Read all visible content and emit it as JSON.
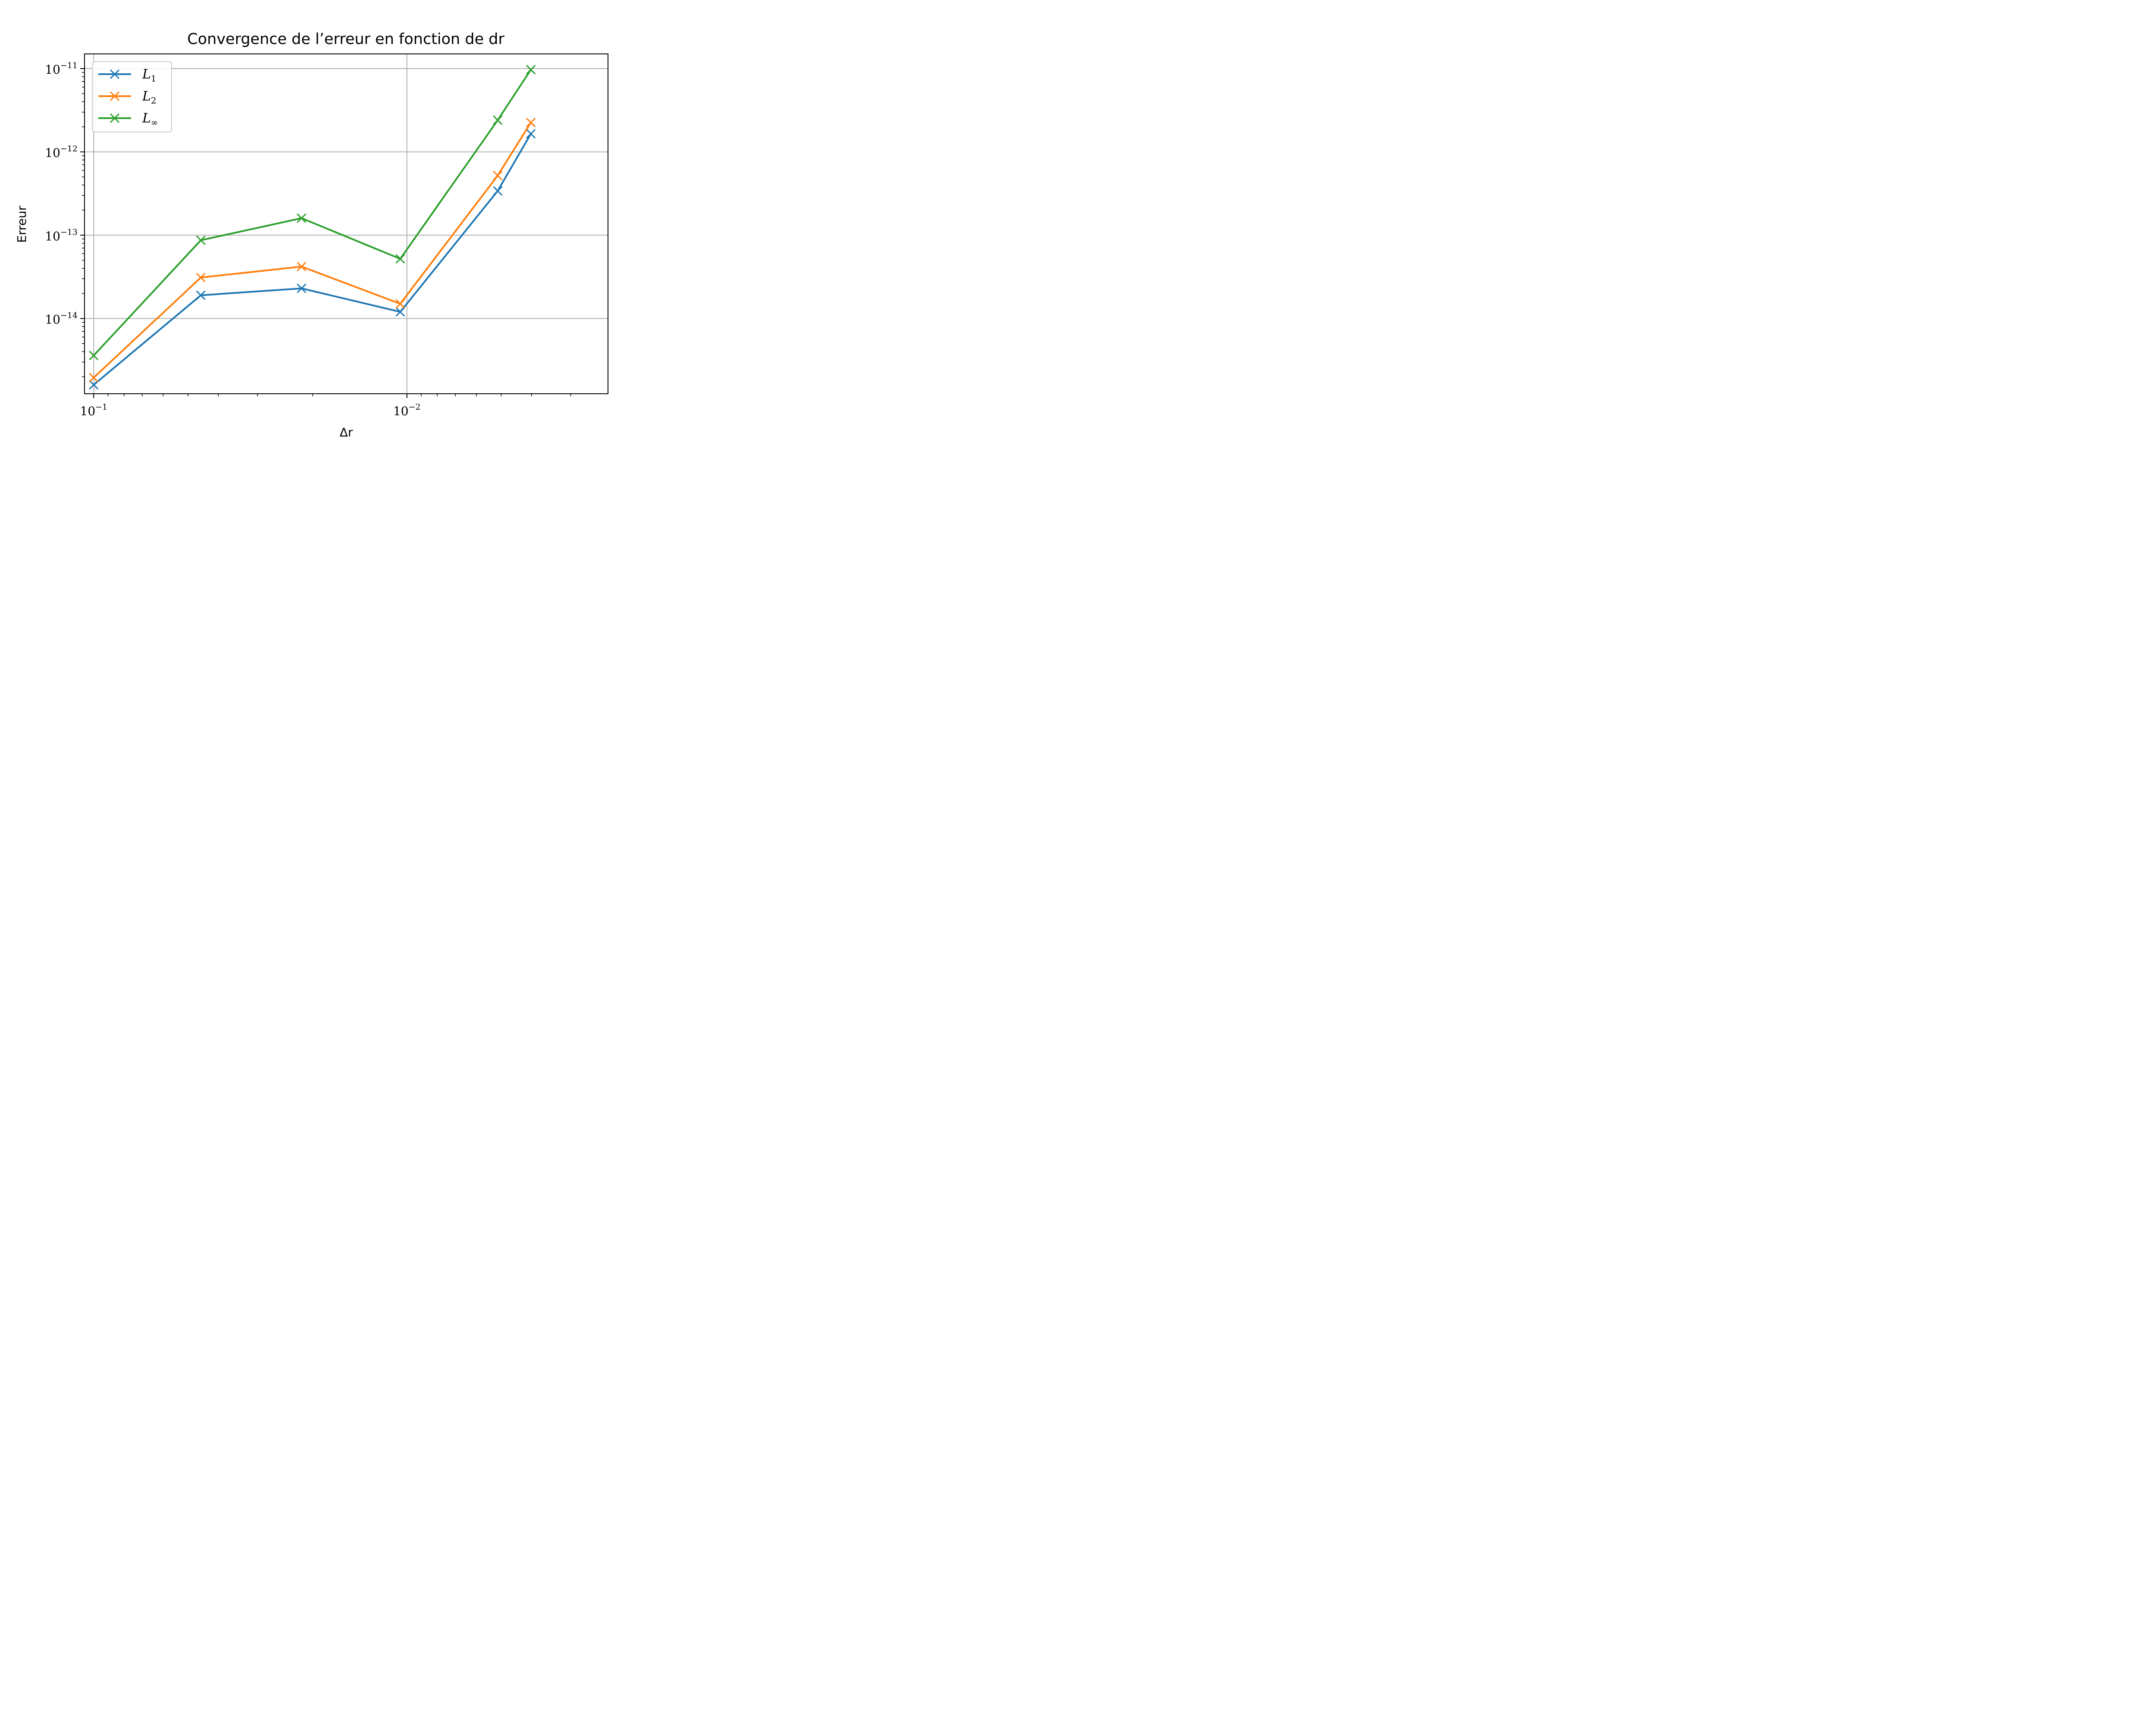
{
  "chart_data": {
    "type": "line",
    "title": "Convergence de l’erreur en fonction de dr",
    "xlabel": "Δr",
    "ylabel": "Erreur",
    "xscale": "log",
    "yscale": "log",
    "x_inverted": true,
    "xlim": [
      0.107,
      0.00228
    ],
    "ylim": [
      1.25e-15,
      1.5e-11
    ],
    "grid": true,
    "legend_position": "upper-left",
    "x_ticks": [
      {
        "value": 0.1,
        "base": "10",
        "exp": "−1"
      },
      {
        "value": 0.01,
        "base": "10",
        "exp": "−2"
      }
    ],
    "y_ticks": [
      {
        "value": 1e-14,
        "base": "10",
        "exp": "−14"
      },
      {
        "value": 1e-13,
        "base": "10",
        "exp": "−13"
      },
      {
        "value": 1e-12,
        "base": "10",
        "exp": "−12"
      },
      {
        "value": 1e-11,
        "base": "10",
        "exp": "−11"
      }
    ],
    "x": [
      0.1,
      0.0455,
      0.0217,
      0.0105,
      0.00513,
      0.00402
    ],
    "series": [
      {
        "name": "L",
        "sub": "1",
        "color": "#1f77b4",
        "marker": "x",
        "values": [
          1.6e-15,
          1.9e-14,
          2.3e-14,
          1.2e-14,
          3.4e-13,
          1.65e-12
        ]
      },
      {
        "name": "L",
        "sub": "2",
        "color": "#ff7f0e",
        "marker": "x",
        "values": [
          1.95e-15,
          3.1e-14,
          4.2e-14,
          1.5e-14,
          5.2e-13,
          2.25e-12
        ]
      },
      {
        "name": "L",
        "sub": "∞",
        "color": "#2ca02c",
        "marker": "x",
        "values": [
          3.6e-15,
          8.7e-14,
          1.6e-13,
          5.2e-14,
          2.4e-12,
          9.7e-12
        ]
      }
    ]
  }
}
